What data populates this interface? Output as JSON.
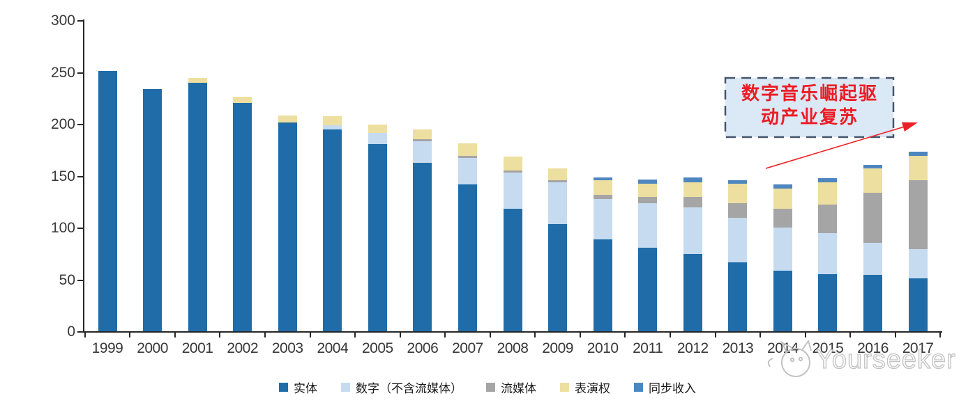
{
  "chart_data": {
    "type": "bar",
    "stacked": true,
    "categories": [
      "1999",
      "2000",
      "2001",
      "2002",
      "2003",
      "2004",
      "2005",
      "2006",
      "2007",
      "2008",
      "2009",
      "2010",
      "2011",
      "2012",
      "2013",
      "2014",
      "2015",
      "2016",
      "2017"
    ],
    "series": [
      {
        "name": "实体",
        "color": "#1F6CA9",
        "values": [
          252,
          234,
          240,
          221,
          202,
          195,
          181,
          163,
          142,
          119,
          104,
          89,
          81,
          75,
          67,
          59,
          56,
          55,
          52
        ]
      },
      {
        "name": "数字（不含流媒体）",
        "color": "#C6DBF0",
        "values": [
          0,
          0,
          0,
          0,
          0,
          4,
          11,
          21,
          26,
          35,
          40,
          39,
          43,
          45,
          43,
          42,
          39,
          31,
          28
        ]
      },
      {
        "name": "流媒体",
        "color": "#A5A5A5",
        "values": [
          0,
          0,
          0,
          0,
          0,
          0,
          0,
          2,
          2,
          2,
          2,
          4,
          6,
          10,
          14,
          18,
          28,
          48,
          66
        ]
      },
      {
        "name": "表演权",
        "color": "#EDDF9F",
        "values": [
          0,
          0,
          5,
          6,
          7,
          9,
          8,
          9,
          12,
          13,
          12,
          14,
          13,
          14,
          19,
          19,
          21,
          24,
          24
        ]
      },
      {
        "name": "同步收入",
        "color": "#4E86C0",
        "values": [
          0,
          0,
          0,
          0,
          0,
          0,
          0,
          0,
          0,
          0,
          0,
          3,
          4,
          5,
          3,
          4,
          4,
          3,
          4
        ]
      }
    ],
    "xlabel": "",
    "ylabel": "",
    "title": "",
    "ylim": [
      0,
      300
    ],
    "yticks": [
      0,
      50,
      100,
      150,
      200,
      250,
      300
    ],
    "grid": false,
    "legend_position": "bottom"
  },
  "annotation": {
    "line1": "数字音乐崛起驱",
    "line2": "动产业复苏",
    "text_color": "#EC1C24",
    "box_fill": "#DBE8F6",
    "box_border": "#44546A",
    "arrow_color": "#EC2024"
  },
  "watermark": {
    "text": "Yourseeker",
    "color": "#c2c2c2"
  },
  "axis_style": {
    "line_color": "#262626",
    "label_color": "#383838"
  }
}
